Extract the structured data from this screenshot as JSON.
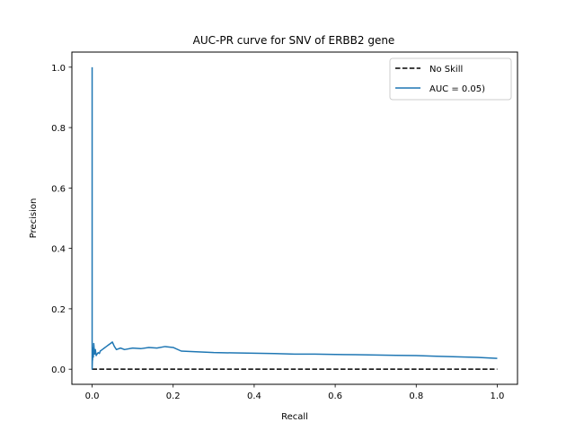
{
  "chart_data": {
    "type": "line",
    "title": "AUC-PR curve for SNV of ERBB2 gene",
    "xlabel": "Recall",
    "ylabel": "Precision",
    "xlim": [
      -0.05,
      1.05
    ],
    "ylim": [
      -0.05,
      1.05
    ],
    "xticks": [
      "0.0",
      "0.2",
      "0.4",
      "0.6",
      "0.8",
      "1.0"
    ],
    "yticks": [
      "0.0",
      "0.2",
      "0.4",
      "0.6",
      "0.8",
      "1.0"
    ],
    "grid": false,
    "legend_position": "top-right",
    "series": [
      {
        "name": "No Skill",
        "color": "#000000",
        "linestyle": "dashed",
        "x": [
          0.0,
          1.0
        ],
        "y": [
          0.0,
          0.0
        ]
      },
      {
        "name": "AUC = 0.05)",
        "color": "#1f77b4",
        "linestyle": "solid",
        "x": [
          0.0,
          0.0,
          0.001,
          0.001,
          0.002,
          0.003,
          0.004,
          0.006,
          0.008,
          0.01,
          0.012,
          0.015,
          0.018,
          0.02,
          0.025,
          0.03,
          0.035,
          0.04,
          0.045,
          0.05,
          0.055,
          0.06,
          0.07,
          0.08,
          0.1,
          0.12,
          0.14,
          0.16,
          0.18,
          0.2,
          0.22,
          0.25,
          0.3,
          0.35,
          0.4,
          0.45,
          0.5,
          0.55,
          0.6,
          0.65,
          0.7,
          0.75,
          0.8,
          0.85,
          0.9,
          0.95,
          1.0
        ],
        "y": [
          1.0,
          0.0,
          0.05,
          0.03,
          0.07,
          0.04,
          0.085,
          0.05,
          0.065,
          0.045,
          0.05,
          0.055,
          0.052,
          0.06,
          0.065,
          0.07,
          0.075,
          0.08,
          0.085,
          0.09,
          0.075,
          0.065,
          0.07,
          0.065,
          0.07,
          0.068,
          0.072,
          0.07,
          0.075,
          0.072,
          0.06,
          0.058,
          0.055,
          0.054,
          0.053,
          0.052,
          0.05,
          0.05,
          0.049,
          0.048,
          0.047,
          0.046,
          0.045,
          0.043,
          0.041,
          0.039,
          0.036
        ]
      }
    ]
  }
}
